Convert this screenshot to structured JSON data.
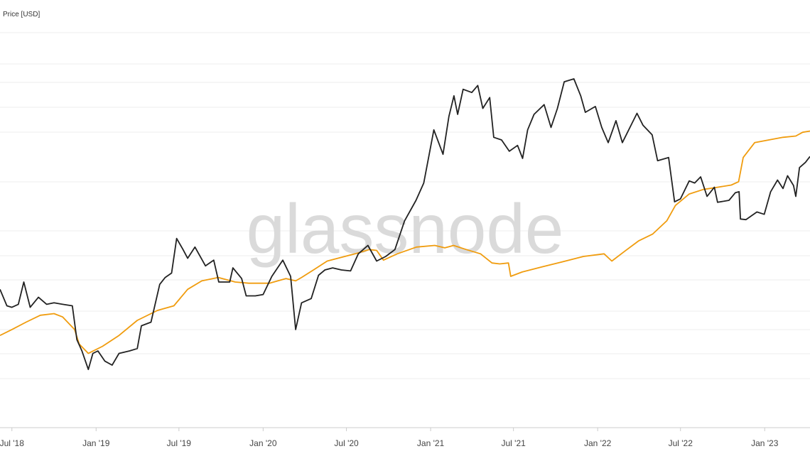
{
  "watermark": "glassnode",
  "chart_data": {
    "type": "line",
    "title": "",
    "ylabel": "Price [USD]",
    "xlabel": "",
    "y_scale": "log",
    "xlim": [
      "2018-06-05",
      "2023-04-10"
    ],
    "grid": true,
    "x_ticks": [
      {
        "date": "2018-07-01",
        "label": "Jul '18"
      },
      {
        "date": "2019-01-01",
        "label": "Jan '19"
      },
      {
        "date": "2019-07-01",
        "label": "Jul '19"
      },
      {
        "date": "2020-01-01",
        "label": "Jan '20"
      },
      {
        "date": "2020-07-01",
        "label": "Jul '20"
      },
      {
        "date": "2021-01-01",
        "label": "Jan '21"
      },
      {
        "date": "2021-07-01",
        "label": "Jul '21"
      },
      {
        "date": "2022-01-01",
        "label": "Jan '22"
      },
      {
        "date": "2022-07-01",
        "label": "Jul '22"
      },
      {
        "date": "2023-01-01",
        "label": "Jan '23"
      }
    ],
    "series": [
      {
        "name": "",
        "color": "#222222",
        "points": [
          [
            "2018-06-05",
            7600
          ],
          [
            "2018-06-20",
            6400
          ],
          [
            "2018-07-01",
            6300
          ],
          [
            "2018-07-15",
            6500
          ],
          [
            "2018-07-27",
            8200
          ],
          [
            "2018-08-10",
            6300
          ],
          [
            "2018-08-28",
            7000
          ],
          [
            "2018-09-15",
            6500
          ],
          [
            "2018-10-01",
            6600
          ],
          [
            "2018-10-20",
            6500
          ],
          [
            "2018-11-10",
            6400
          ],
          [
            "2018-11-20",
            4500
          ],
          [
            "2018-12-01",
            4000
          ],
          [
            "2018-12-15",
            3300
          ],
          [
            "2018-12-25",
            3900
          ],
          [
            "2019-01-05",
            4000
          ],
          [
            "2019-01-20",
            3600
          ],
          [
            "2019-02-05",
            3450
          ],
          [
            "2019-02-20",
            3900
          ],
          [
            "2019-03-15",
            4000
          ],
          [
            "2019-04-01",
            4100
          ],
          [
            "2019-04-10",
            5200
          ],
          [
            "2019-05-01",
            5400
          ],
          [
            "2019-05-20",
            8000
          ],
          [
            "2019-06-01",
            8600
          ],
          [
            "2019-06-15",
            9000
          ],
          [
            "2019-06-26",
            12900
          ],
          [
            "2019-07-10",
            11500
          ],
          [
            "2019-07-20",
            10500
          ],
          [
            "2019-08-05",
            11800
          ],
          [
            "2019-08-28",
            9700
          ],
          [
            "2019-09-15",
            10300
          ],
          [
            "2019-09-26",
            8200
          ],
          [
            "2019-10-20",
            8200
          ],
          [
            "2019-10-27",
            9500
          ],
          [
            "2019-11-15",
            8500
          ],
          [
            "2019-11-25",
            7100
          ],
          [
            "2019-12-15",
            7100
          ],
          [
            "2020-01-01",
            7200
          ],
          [
            "2020-01-20",
            8700
          ],
          [
            "2020-02-13",
            10300
          ],
          [
            "2020-03-01",
            8700
          ],
          [
            "2020-03-12",
            5000
          ],
          [
            "2020-03-25",
            6600
          ],
          [
            "2020-04-15",
            6900
          ],
          [
            "2020-05-01",
            8800
          ],
          [
            "2020-05-15",
            9300
          ],
          [
            "2020-06-01",
            9500
          ],
          [
            "2020-06-20",
            9300
          ],
          [
            "2020-07-10",
            9200
          ],
          [
            "2020-07-27",
            11000
          ],
          [
            "2020-08-17",
            12000
          ],
          [
            "2020-09-05",
            10200
          ],
          [
            "2020-09-25",
            10700
          ],
          [
            "2020-10-15",
            11500
          ],
          [
            "2020-11-05",
            15500
          ],
          [
            "2020-11-30",
            19200
          ],
          [
            "2020-12-17",
            23000
          ],
          [
            "2021-01-08",
            40000
          ],
          [
            "2021-01-28",
            31000
          ],
          [
            "2021-02-10",
            46000
          ],
          [
            "2021-02-21",
            57000
          ],
          [
            "2021-03-01",
            47000
          ],
          [
            "2021-03-13",
            61000
          ],
          [
            "2021-04-01",
            59000
          ],
          [
            "2021-04-14",
            63500
          ],
          [
            "2021-04-25",
            50000
          ],
          [
            "2021-05-10",
            56000
          ],
          [
            "2021-05-19",
            37000
          ],
          [
            "2021-06-05",
            36000
          ],
          [
            "2021-06-22",
            32000
          ],
          [
            "2021-07-10",
            34000
          ],
          [
            "2021-07-21",
            29700
          ],
          [
            "2021-08-01",
            40000
          ],
          [
            "2021-08-15",
            47000
          ],
          [
            "2021-09-06",
            52000
          ],
          [
            "2021-09-21",
            41000
          ],
          [
            "2021-10-05",
            50000
          ],
          [
            "2021-10-20",
            66000
          ],
          [
            "2021-11-10",
            68000
          ],
          [
            "2021-11-25",
            57000
          ],
          [
            "2021-12-05",
            48000
          ],
          [
            "2021-12-27",
            51000
          ],
          [
            "2022-01-10",
            41000
          ],
          [
            "2022-01-24",
            35000
          ],
          [
            "2022-02-10",
            44000
          ],
          [
            "2022-02-24",
            35000
          ],
          [
            "2022-03-28",
            47500
          ],
          [
            "2022-04-10",
            42000
          ],
          [
            "2022-04-30",
            38000
          ],
          [
            "2022-05-12",
            29000
          ],
          [
            "2022-06-05",
            30000
          ],
          [
            "2022-06-18",
            18900
          ],
          [
            "2022-07-01",
            19500
          ],
          [
            "2022-07-20",
            23500
          ],
          [
            "2022-08-01",
            23000
          ],
          [
            "2022-08-14",
            24500
          ],
          [
            "2022-08-28",
            20000
          ],
          [
            "2022-09-13",
            22000
          ],
          [
            "2022-09-20",
            18800
          ],
          [
            "2022-10-15",
            19200
          ],
          [
            "2022-10-29",
            20800
          ],
          [
            "2022-11-06",
            21000
          ],
          [
            "2022-11-09",
            15800
          ],
          [
            "2022-11-21",
            15700
          ],
          [
            "2022-12-15",
            17000
          ],
          [
            "2022-12-31",
            16600
          ],
          [
            "2023-01-14",
            21000
          ],
          [
            "2023-01-29",
            23700
          ],
          [
            "2023-02-10",
            21700
          ],
          [
            "2023-02-20",
            24800
          ],
          [
            "2023-03-05",
            22400
          ],
          [
            "2023-03-10",
            20000
          ],
          [
            "2023-03-18",
            27000
          ],
          [
            "2023-03-31",
            28500
          ],
          [
            "2023-04-10",
            30300
          ]
        ]
      },
      {
        "name": "",
        "color": "#f09c0e",
        "points": [
          [
            "2018-06-05",
            4700
          ],
          [
            "2018-07-01",
            5000
          ],
          [
            "2018-08-01",
            5400
          ],
          [
            "2018-09-01",
            5800
          ],
          [
            "2018-10-01",
            5900
          ],
          [
            "2018-10-20",
            5700
          ],
          [
            "2018-11-15",
            5000
          ],
          [
            "2018-11-25",
            4300
          ],
          [
            "2018-12-15",
            3900
          ],
          [
            "2019-01-15",
            4200
          ],
          [
            "2019-02-20",
            4700
          ],
          [
            "2019-04-01",
            5500
          ],
          [
            "2019-05-15",
            6100
          ],
          [
            "2019-06-20",
            6400
          ],
          [
            "2019-07-20",
            7600
          ],
          [
            "2019-08-20",
            8300
          ],
          [
            "2019-09-25",
            8600
          ],
          [
            "2019-11-01",
            8200
          ],
          [
            "2019-12-01",
            8100
          ],
          [
            "2020-01-15",
            8100
          ],
          [
            "2020-02-20",
            8500
          ],
          [
            "2020-03-12",
            8300
          ],
          [
            "2020-03-25",
            8600
          ],
          [
            "2020-04-20",
            9300
          ],
          [
            "2020-05-20",
            10200
          ],
          [
            "2020-06-20",
            10600
          ],
          [
            "2020-07-20",
            11000
          ],
          [
            "2020-08-20",
            11500
          ],
          [
            "2020-09-05",
            11400
          ],
          [
            "2020-09-20",
            10300
          ],
          [
            "2020-10-20",
            11000
          ],
          [
            "2020-12-01",
            11800
          ],
          [
            "2021-01-10",
            12000
          ],
          [
            "2021-02-01",
            11700
          ],
          [
            "2021-02-20",
            12000
          ],
          [
            "2021-03-20",
            11500
          ],
          [
            "2021-04-20",
            11000
          ],
          [
            "2021-05-15",
            10000
          ],
          [
            "2021-06-01",
            9900
          ],
          [
            "2021-06-20",
            10000
          ],
          [
            "2021-06-25",
            8700
          ],
          [
            "2021-07-20",
            9100
          ],
          [
            "2021-09-01",
            9600
          ],
          [
            "2021-10-15",
            10100
          ],
          [
            "2021-12-01",
            10700
          ],
          [
            "2022-01-15",
            11000
          ],
          [
            "2022-02-01",
            10200
          ],
          [
            "2022-03-01",
            11300
          ],
          [
            "2022-04-01",
            12600
          ],
          [
            "2022-05-01",
            13500
          ],
          [
            "2022-06-01",
            15500
          ],
          [
            "2022-06-20",
            18200
          ],
          [
            "2022-07-20",
            20500
          ],
          [
            "2022-08-20",
            21500
          ],
          [
            "2022-09-20",
            22000
          ],
          [
            "2022-10-20",
            22500
          ],
          [
            "2022-11-05",
            23300
          ],
          [
            "2022-11-15",
            30000
          ],
          [
            "2022-12-10",
            35000
          ],
          [
            "2023-01-10",
            36000
          ],
          [
            "2023-02-10",
            37000
          ],
          [
            "2023-03-10",
            37500
          ],
          [
            "2023-03-25",
            39000
          ],
          [
            "2023-04-10",
            39500
          ]
        ]
      }
    ]
  }
}
